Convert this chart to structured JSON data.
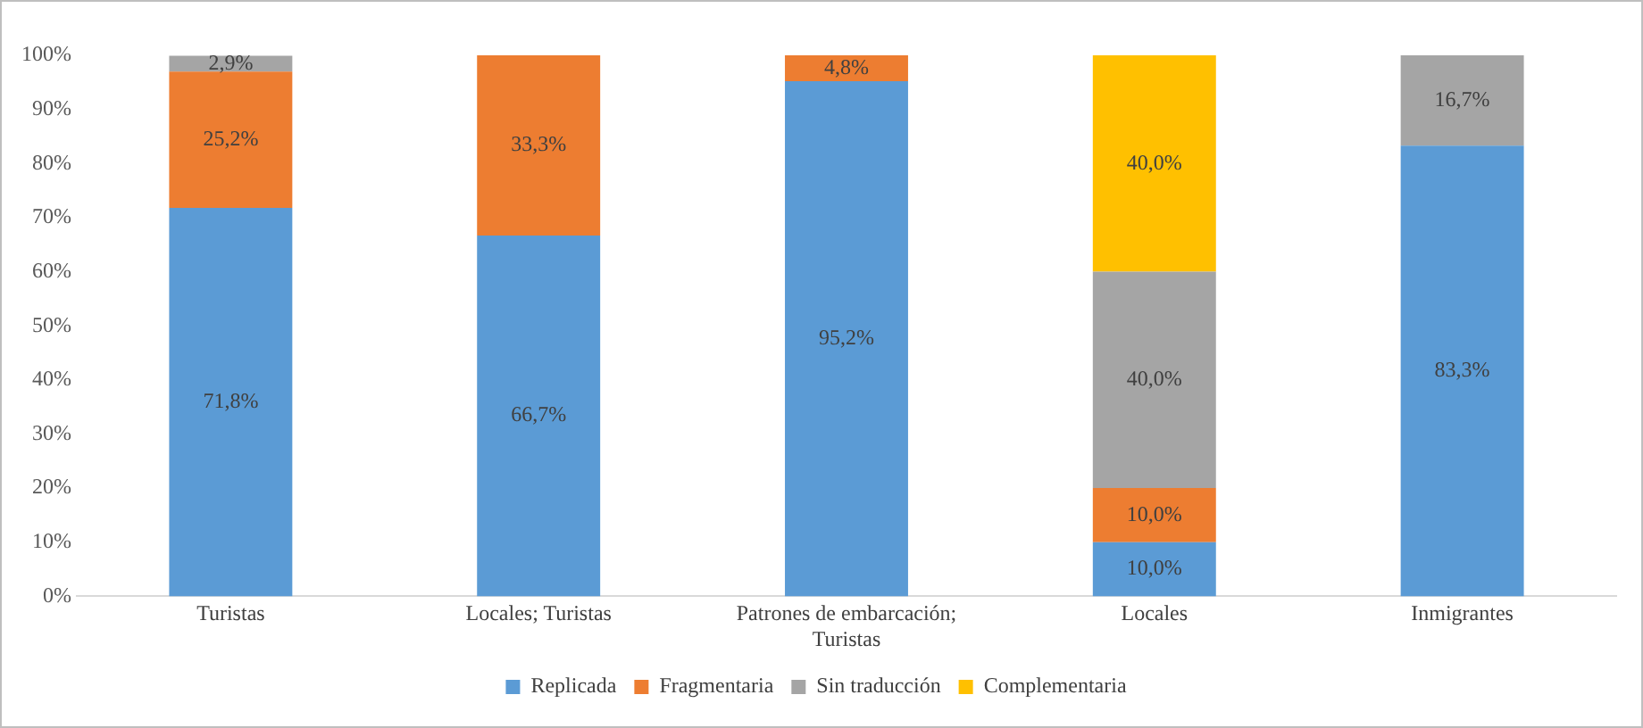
{
  "chart_data": {
    "type": "bar",
    "stacked": true,
    "categories": [
      "Turistas",
      "Locales; Turistas",
      "Patrones de embarcación; Turistas",
      "Locales",
      "Inmigrantes"
    ],
    "series": [
      {
        "name": "Replicada",
        "color": "#5b9bd5",
        "values": [
          71.8,
          66.7,
          95.2,
          10.0,
          83.3
        ],
        "value_labels": [
          "71,8%",
          "66,7%",
          "95,2%",
          "10,0%",
          "83,3%"
        ]
      },
      {
        "name": "Fragmentaria",
        "color": "#ed7d31",
        "values": [
          25.2,
          33.3,
          4.8,
          10.0,
          null
        ],
        "value_labels": [
          "25,2%",
          "33,3%",
          "4,8%",
          "10,0%",
          null
        ]
      },
      {
        "name": "Sin traducción",
        "color": "#a5a5a5",
        "values": [
          2.9,
          null,
          null,
          40.0,
          16.7
        ],
        "value_labels": [
          "2,9%",
          null,
          null,
          "40,0%",
          "16,7%"
        ]
      },
      {
        "name": "Complementaria",
        "color": "#ffc000",
        "values": [
          null,
          null,
          null,
          40.0,
          null
        ],
        "value_labels": [
          null,
          null,
          null,
          "40,0%",
          null
        ]
      }
    ],
    "ylim": [
      0,
      100
    ],
    "yticks": [
      {
        "value": 0,
        "label": "0%"
      },
      {
        "value": 10,
        "label": "10%"
      },
      {
        "value": 20,
        "label": "20%"
      },
      {
        "value": 30,
        "label": "30%"
      },
      {
        "value": 40,
        "label": "40%"
      },
      {
        "value": 50,
        "label": "50%"
      },
      {
        "value": 60,
        "label": "60%"
      },
      {
        "value": 70,
        "label": "70%"
      },
      {
        "value": 80,
        "label": "80%"
      },
      {
        "value": 90,
        "label": "90%"
      },
      {
        "value": 100,
        "label": "100%"
      }
    ],
    "grid": false,
    "legend": "bottom"
  }
}
